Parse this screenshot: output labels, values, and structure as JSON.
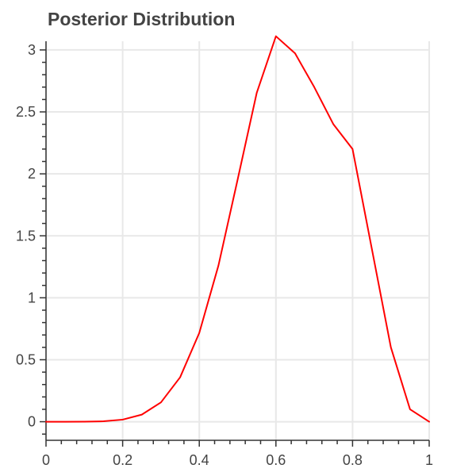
{
  "chart_data": {
    "type": "line",
    "title": "Posterior Distribution",
    "xlabel": "",
    "ylabel": "",
    "xlim": [
      0,
      1
    ],
    "ylim": [
      -0.15,
      3.07
    ],
    "x_ticks": [
      0,
      0.2,
      0.4,
      0.6,
      0.8,
      1
    ],
    "x_tick_labels": [
      "0",
      "0.2",
      "0.4",
      "0.6",
      "0.8",
      "1"
    ],
    "y_ticks": [
      0,
      0.5,
      1,
      1.5,
      2,
      2.5,
      3
    ],
    "y_tick_labels": [
      "0",
      "0.5",
      "1",
      "1.5",
      "2",
      "2.5",
      "3"
    ],
    "grid": true,
    "legend": "none",
    "line_color": "#ff0000",
    "series": [
      {
        "x": [
          0,
          0.05,
          0.1,
          0.15,
          0.2,
          0.25,
          0.3,
          0.35,
          0.4,
          0.45,
          0.5,
          0.55,
          0.6,
          0.65,
          0.7,
          0.75,
          0.8,
          0.85,
          0.9,
          0.95,
          1
        ],
        "values": [
          0,
          0,
          0.0004,
          0.0035,
          0.0168,
          0.0573,
          0.1561,
          0.3584,
          0.7167,
          1.2604,
          1.9531,
          2.6546,
          3.1104,
          2.9721,
          2.7,
          2.4,
          2.2,
          1.4,
          0.6,
          0.1,
          0
        ]
      }
    ]
  }
}
